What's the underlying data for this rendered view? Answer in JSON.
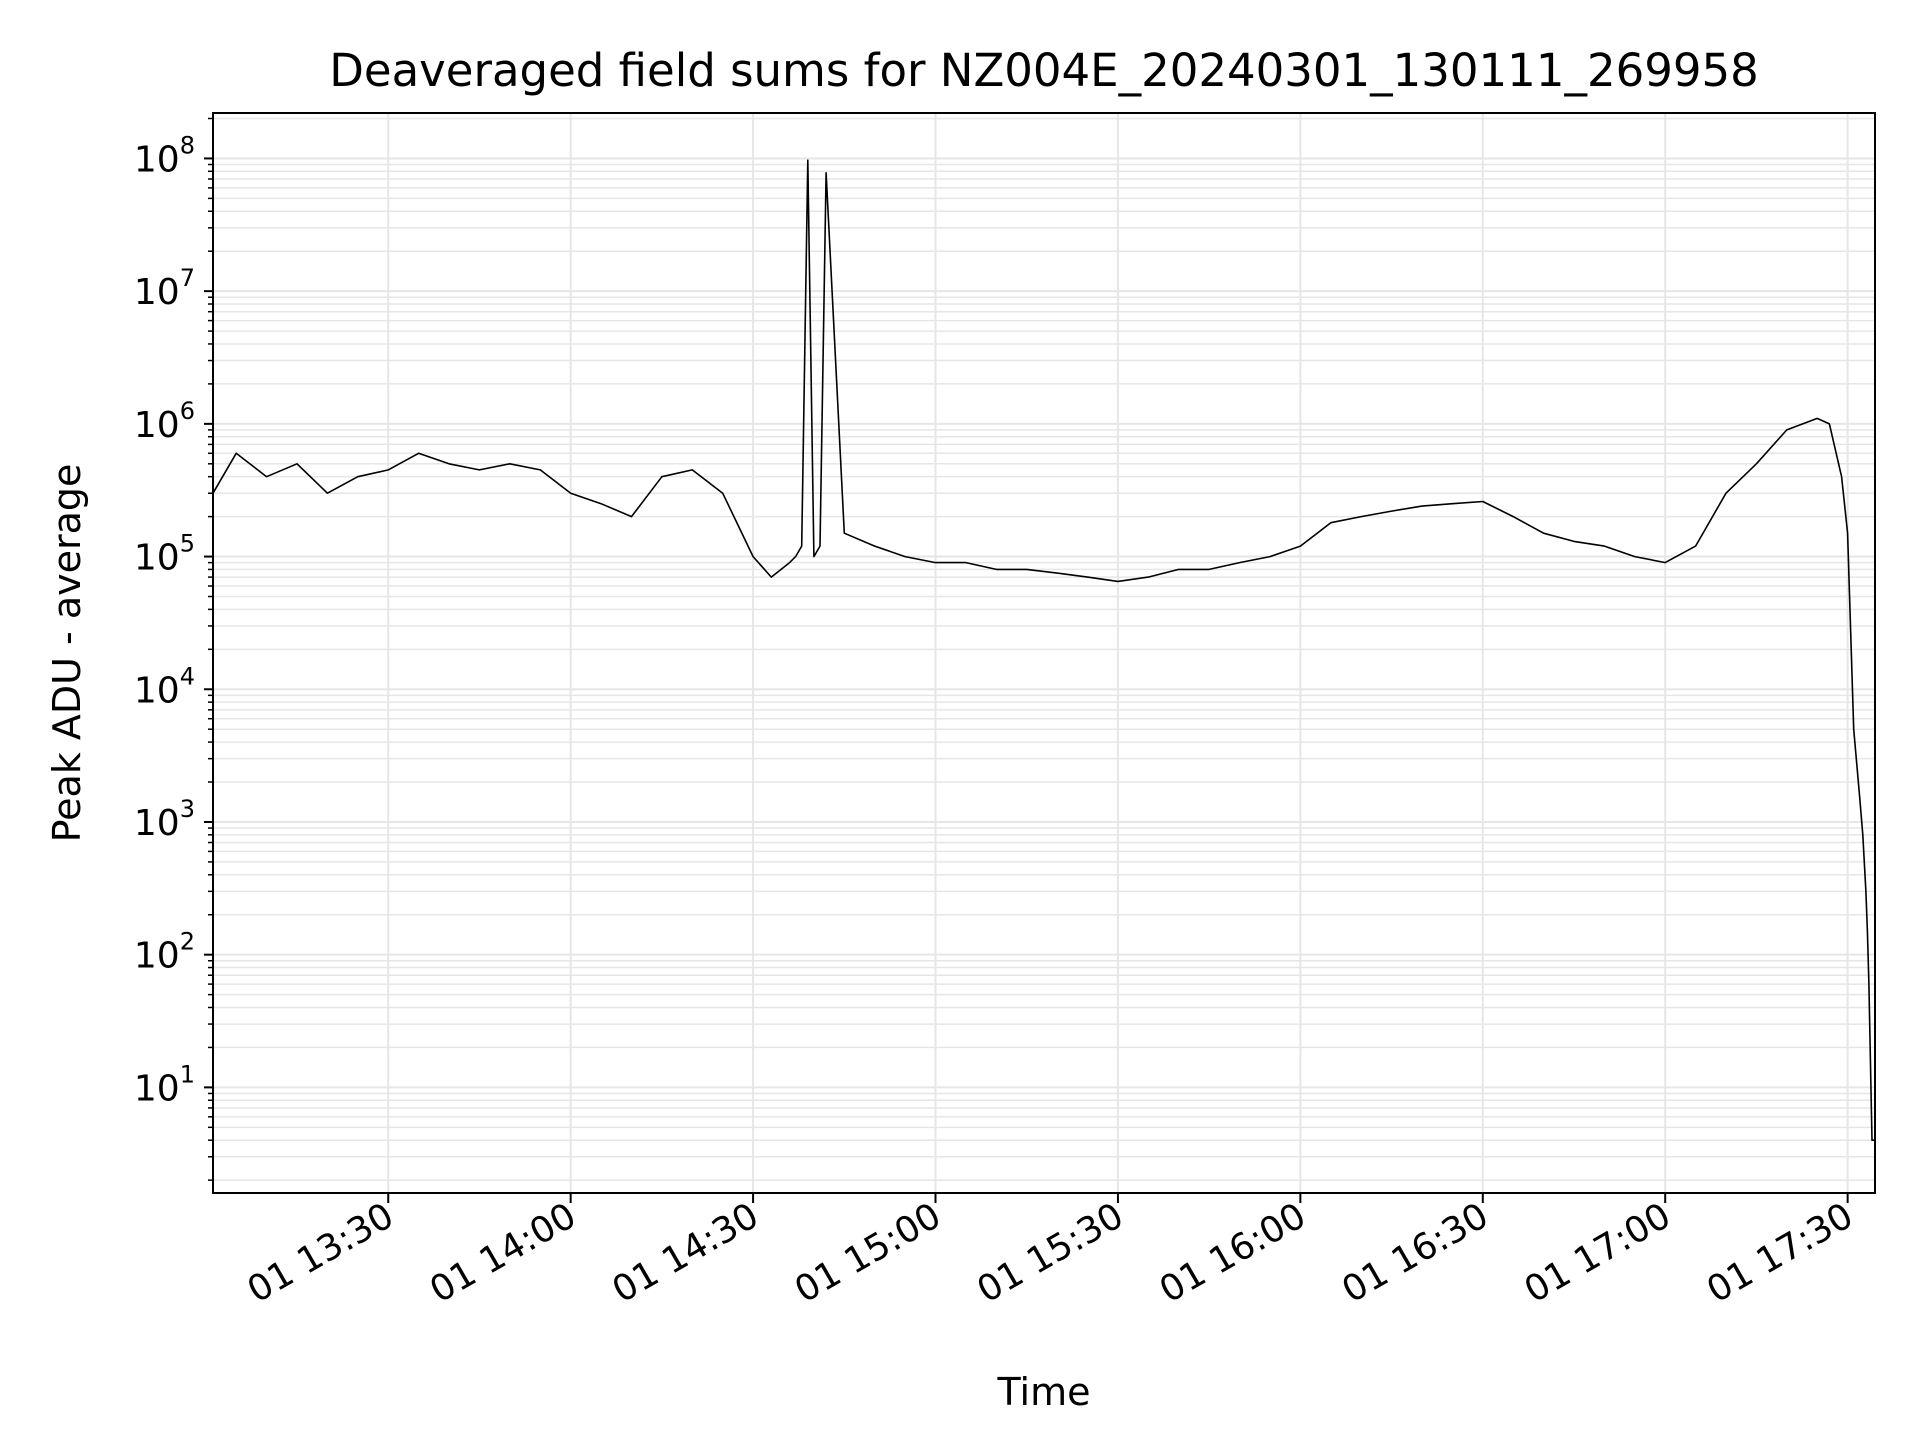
{
  "chart_data": {
    "type": "line",
    "title": "Deaveraged field sums for NZ004E_20240301_130111_269958",
    "xlabel": "Time",
    "ylabel": "Peak ADU - average",
    "yscale": "log",
    "ylim": [
      1.6,
      220000000.0
    ],
    "xlim": [
      "2024-03-01 13:01:11",
      "2024-03-01 17:34:30"
    ],
    "x_ticks": [
      {
        "value": "2024-03-01 13:30",
        "label": "01 13:30"
      },
      {
        "value": "2024-03-01 14:00",
        "label": "01 14:00"
      },
      {
        "value": "2024-03-01 14:30",
        "label": "01 14:30"
      },
      {
        "value": "2024-03-01 15:00",
        "label": "01 15:00"
      },
      {
        "value": "2024-03-01 15:30",
        "label": "01 15:30"
      },
      {
        "value": "2024-03-01 16:00",
        "label": "01 16:00"
      },
      {
        "value": "2024-03-01 16:30",
        "label": "01 16:30"
      },
      {
        "value": "2024-03-01 17:00",
        "label": "01 17:00"
      },
      {
        "value": "2024-03-01 17:30",
        "label": "01 17:30"
      }
    ],
    "y_ticks": [
      {
        "value": 10,
        "base": "10",
        "exp": "1"
      },
      {
        "value": 100,
        "base": "10",
        "exp": "2"
      },
      {
        "value": 1000,
        "base": "10",
        "exp": "3"
      },
      {
        "value": 10000,
        "base": "10",
        "exp": "4"
      },
      {
        "value": 100000,
        "base": "10",
        "exp": "5"
      },
      {
        "value": 1000000,
        "base": "10",
        "exp": "6"
      },
      {
        "value": 10000000,
        "base": "10",
        "exp": "7"
      },
      {
        "value": 100000000,
        "base": "10",
        "exp": "8"
      }
    ],
    "grid": true,
    "line_color": "#000000",
    "grid_color": "#e6e6e6",
    "series": [
      {
        "x": [
          "2024-03-01 13:01:11",
          "2024-03-01 13:05",
          "2024-03-01 13:10",
          "2024-03-01 13:15",
          "2024-03-01 13:20",
          "2024-03-01 13:25",
          "2024-03-01 13:30",
          "2024-03-01 13:35",
          "2024-03-01 13:40",
          "2024-03-01 13:45",
          "2024-03-01 13:50",
          "2024-03-01 13:55",
          "2024-03-01 14:00",
          "2024-03-01 14:05",
          "2024-03-01 14:10",
          "2024-03-01 14:15",
          "2024-03-01 14:20",
          "2024-03-01 14:25",
          "2024-03-01 14:30",
          "2024-03-01 14:33",
          "2024-03-01 14:36",
          "2024-03-01 14:37",
          "2024-03-01 14:38",
          "2024-03-01 14:39",
          "2024-03-01 14:40",
          "2024-03-01 14:41",
          "2024-03-01 14:42",
          "2024-03-01 14:45",
          "2024-03-01 14:50",
          "2024-03-01 14:55",
          "2024-03-01 15:00",
          "2024-03-01 15:05",
          "2024-03-01 15:10",
          "2024-03-01 15:15",
          "2024-03-01 15:20",
          "2024-03-01 15:25",
          "2024-03-01 15:30",
          "2024-03-01 15:35",
          "2024-03-01 15:40",
          "2024-03-01 15:45",
          "2024-03-01 15:50",
          "2024-03-01 15:55",
          "2024-03-01 16:00",
          "2024-03-01 16:05",
          "2024-03-01 16:10",
          "2024-03-01 16:15",
          "2024-03-01 16:20",
          "2024-03-01 16:25",
          "2024-03-01 16:30",
          "2024-03-01 16:35",
          "2024-03-01 16:40",
          "2024-03-01 16:45",
          "2024-03-01 16:50",
          "2024-03-01 16:55",
          "2024-03-01 17:00",
          "2024-03-01 17:05",
          "2024-03-01 17:10",
          "2024-03-01 17:15",
          "2024-03-01 17:20",
          "2024-03-01 17:25",
          "2024-03-01 17:27",
          "2024-03-01 17:29",
          "2024-03-01 17:30",
          "2024-03-01 17:31",
          "2024-03-01 17:32",
          "2024-03-01 17:32:30",
          "2024-03-01 17:33",
          "2024-03-01 17:33:15",
          "2024-03-01 17:33:30",
          "2024-03-01 17:34",
          "2024-03-01 17:34:30"
        ],
        "values": [
          300000,
          600000,
          400000,
          500000,
          300000,
          400000,
          450000,
          600000,
          500000,
          450000,
          500000,
          450000,
          300000,
          250000,
          200000,
          400000,
          450000,
          300000,
          100000,
          70000,
          90000,
          100000,
          120000,
          97000000,
          100000,
          120000,
          78000000,
          150000,
          120000,
          100000,
          90000,
          90000,
          80000,
          80000,
          75000,
          70000,
          65000,
          70000,
          80000,
          80000,
          90000,
          100000,
          120000,
          180000,
          200000,
          220000,
          240000,
          250000,
          260000,
          200000,
          150000,
          130000,
          120000,
          100000,
          90000,
          120000,
          300000,
          500000,
          900000,
          1100000,
          1000000,
          400000,
          150000,
          5000,
          1500,
          800,
          300,
          150,
          60,
          4,
          4
        ]
      }
    ]
  }
}
